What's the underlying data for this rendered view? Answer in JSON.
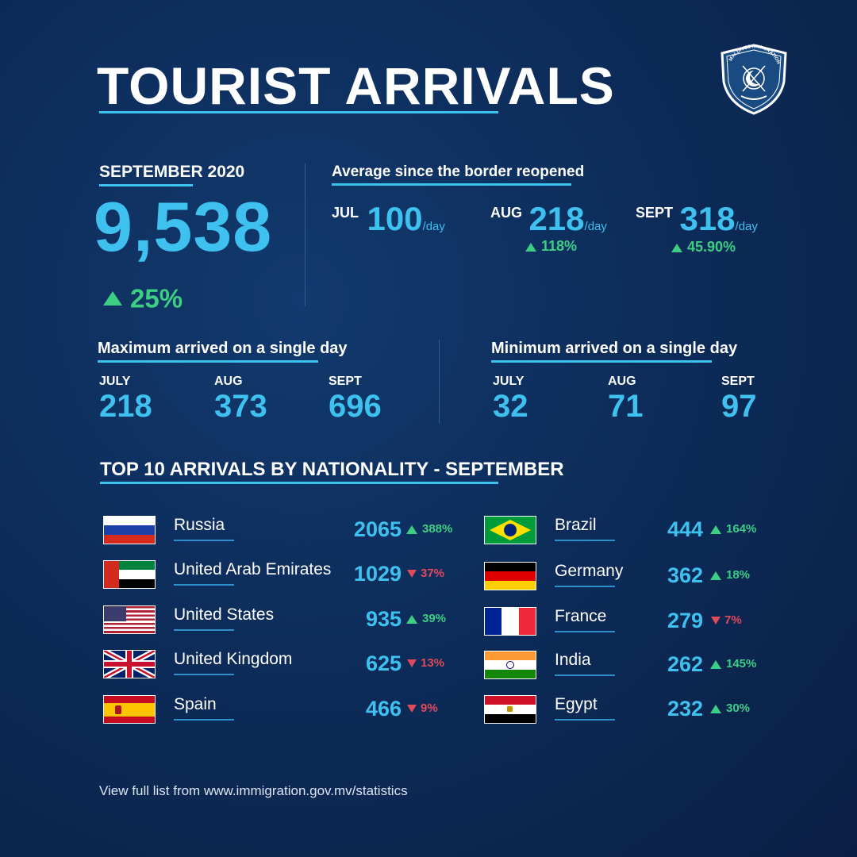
{
  "title": "TOURIST ARRIVALS",
  "logo": {
    "text": "MALDIVES IMMIGRATION",
    "icon": "emblem-shield-icon"
  },
  "month": {
    "label": "SEPTEMBER 2020",
    "total": "9,538",
    "change": "25%",
    "direction": "up"
  },
  "average": {
    "label": "Average since the border reopened",
    "unit": "/day",
    "items": [
      {
        "month": "JUL",
        "value": "100",
        "change": ""
      },
      {
        "month": "AUG",
        "value": "218",
        "change": "118%"
      },
      {
        "month": "SEPT",
        "value": "318",
        "change": "45.90%"
      }
    ]
  },
  "maximum": {
    "label": "Maximum arrived on a single day",
    "items": [
      {
        "month": "JULY",
        "value": "218"
      },
      {
        "month": "AUG",
        "value": "373"
      },
      {
        "month": "SEPT",
        "value": "696"
      }
    ]
  },
  "minimum": {
    "label": "Minimum arrived on a single day",
    "items": [
      {
        "month": "JULY",
        "value": "32"
      },
      {
        "month": "AUG",
        "value": "71"
      },
      {
        "month": "SEPT",
        "value": "97"
      }
    ]
  },
  "top10": {
    "label": "TOP 10 ARRIVALS BY NATIONALITY - SEPTEMBER",
    "left": [
      {
        "country": "Russia",
        "count": "2065",
        "change": "388%",
        "direction": "up",
        "flag": "russia-flag-icon"
      },
      {
        "country": "United Arab Emirates",
        "count": "1029",
        "change": "37%",
        "direction": "down",
        "flag": "uae-flag-icon"
      },
      {
        "country": "United States",
        "count": "935",
        "change": "39%",
        "direction": "up",
        "flag": "usa-flag-icon"
      },
      {
        "country": "United Kingdom",
        "count": "625",
        "change": "13%",
        "direction": "down",
        "flag": "uk-flag-icon"
      },
      {
        "country": "Spain",
        "count": "466",
        "change": "9%",
        "direction": "down",
        "flag": "spain-flag-icon"
      }
    ],
    "right": [
      {
        "country": "Brazil",
        "count": "444",
        "change": "164%",
        "direction": "up",
        "flag": "brazil-flag-icon"
      },
      {
        "country": "Germany",
        "count": "362",
        "change": "18%",
        "direction": "up",
        "flag": "germany-flag-icon"
      },
      {
        "country": "France",
        "count": "279",
        "change": "7%",
        "direction": "down",
        "flag": "france-flag-icon"
      },
      {
        "country": "India",
        "count": "262",
        "change": "145%",
        "direction": "up",
        "flag": "india-flag-icon"
      },
      {
        "country": "Egypt",
        "count": "232",
        "change": "30%",
        "direction": "up",
        "flag": "egypt-flag-icon"
      }
    ]
  },
  "footer": "View full list from www.immigration.gov.mv/statistics",
  "colors": {
    "accent": "#3fc1f0",
    "up": "#3dce84",
    "down": "#e04a5c",
    "background": "#0d2c5a"
  }
}
